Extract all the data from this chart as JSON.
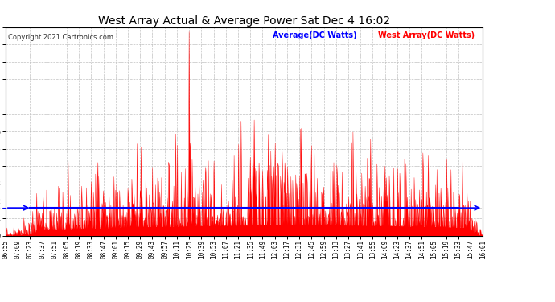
{
  "title": "West Array Actual & Average Power Sat Dec 4 16:02",
  "copyright": "Copyright 2021 Cartronics.com",
  "legend_avg": "Average(DC Watts)",
  "legend_west": "West Array(DC Watts)",
  "avg_value": 247.26,
  "y_ticks": [
    0.0,
    155.1,
    310.2,
    465.3,
    620.4,
    775.5,
    930.6,
    1085.7,
    1240.8,
    1395.9,
    1551.0,
    1706.2,
    1861.3
  ],
  "y_max": 1861.3,
  "y_min": 0.0,
  "bg_color": "#ffffff",
  "plot_bg_color": "#ffffff",
  "grid_color": "#b0b0b0",
  "fill_color": "#ff0000",
  "line_color": "#ff0000",
  "avg_line_color": "#0000ff",
  "title_color": "#000000",
  "copyright_color": "#333333",
  "avg_label_color": "#0000ff",
  "west_label_color": "#ff0000",
  "x_tick_labels": [
    "06:55",
    "07:09",
    "07:23",
    "07:37",
    "07:51",
    "08:05",
    "08:19",
    "08:33",
    "08:47",
    "09:01",
    "09:15",
    "09:29",
    "09:43",
    "09:57",
    "10:11",
    "10:25",
    "10:39",
    "10:53",
    "11:07",
    "11:21",
    "11:35",
    "11:49",
    "12:03",
    "12:17",
    "12:31",
    "12:45",
    "12:59",
    "13:13",
    "13:27",
    "13:41",
    "13:55",
    "14:09",
    "14:23",
    "14:37",
    "14:51",
    "15:05",
    "15:19",
    "15:33",
    "15:47",
    "16:01"
  ]
}
